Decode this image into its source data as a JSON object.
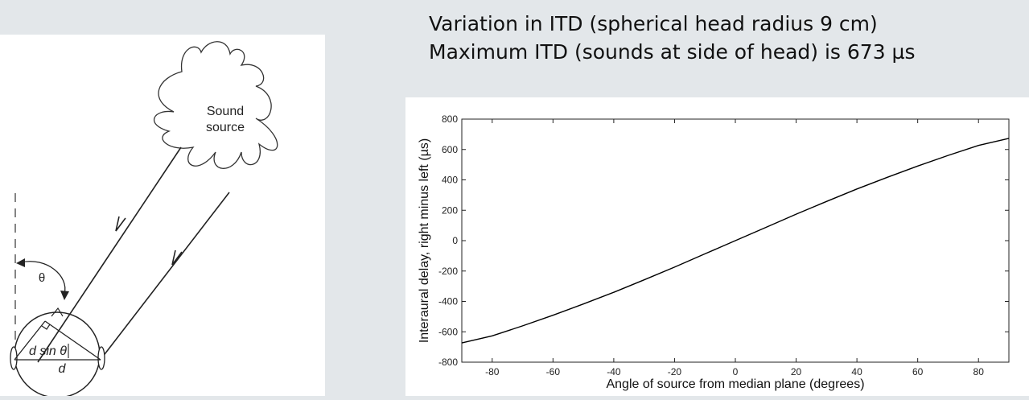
{
  "header": {
    "line1": "Variation in ITD (spherical head radius 9 cm)",
    "line2": "Maximum ITD (sounds at side of head) is 673 µs"
  },
  "diagram": {
    "sound_source_line1": "Sound",
    "sound_source_line2": "source",
    "theta_label": "θ",
    "d_sin_theta_label": "d sin θ",
    "d_label": "d"
  },
  "chart_data": {
    "type": "line",
    "title": "",
    "xlabel": "Angle of source from median plane (degrees)",
    "ylabel": "Interaural delay, right minus left (µs)",
    "xlim": [
      -90,
      90
    ],
    "ylim": [
      -800,
      800
    ],
    "xticks": [
      -80,
      -60,
      -40,
      -20,
      0,
      20,
      40,
      60,
      80
    ],
    "yticks": [
      -800,
      -600,
      -400,
      -200,
      0,
      200,
      400,
      600,
      800
    ],
    "grid": false,
    "series": [
      {
        "x": [
          -90,
          -80,
          -70,
          -60,
          -50,
          -40,
          -30,
          -20,
          -10,
          0,
          10,
          20,
          30,
          40,
          50,
          60,
          70,
          80,
          90
        ],
        "y": [
          -673,
          -627,
          -561,
          -491,
          -417,
          -340,
          -258,
          -174,
          -87,
          0,
          87,
          174,
          258,
          340,
          417,
          491,
          561,
          627,
          673
        ]
      }
    ],
    "line_color": "#000000"
  }
}
